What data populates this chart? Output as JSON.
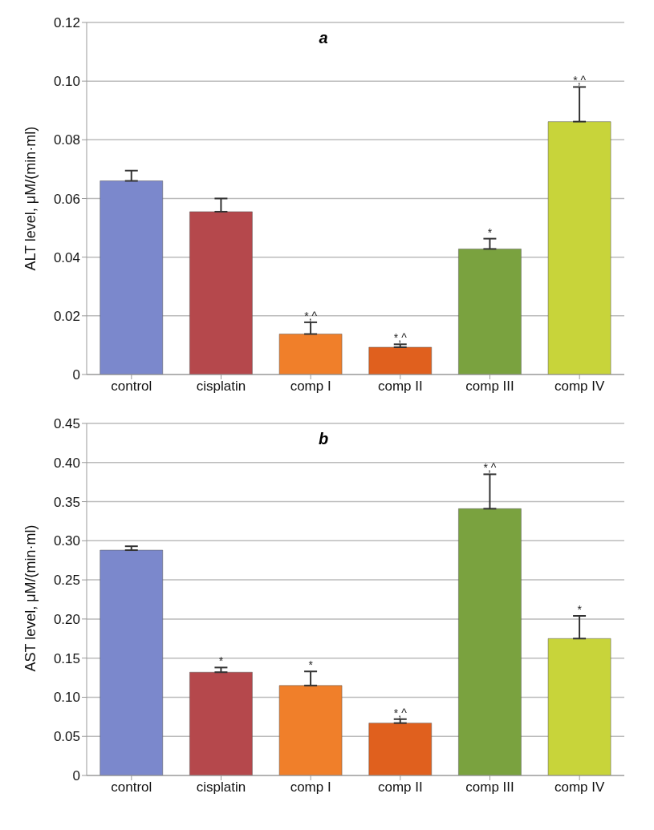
{
  "chart_data": [
    {
      "type": "bar",
      "title": "a",
      "ylabel": "ALT level, μM/(min·ml)",
      "categories": [
        "control",
        "cisplatin",
        "comp I",
        "comp II",
        "comp III",
        "comp IV"
      ],
      "values": [
        0.066,
        0.0555,
        0.0138,
        0.0093,
        0.0428,
        0.0862
      ],
      "colors": [
        "#7b88cc",
        "#b5484c",
        "#f07f2a",
        "#e0601e",
        "#7aa23f",
        "#c8d43a"
      ],
      "errors": [
        [
          0.066,
          0.0695
        ],
        [
          0.0555,
          0.06
        ],
        [
          0.0138,
          0.0178
        ],
        [
          0.0093,
          0.0103
        ],
        [
          0.0428,
          0.0463
        ],
        [
          0.0862,
          0.098
        ]
      ],
      "ylim": [
        0,
        0.12
      ],
      "yticks": [
        0,
        0.02,
        0.04,
        0.06,
        0.08,
        {
          "value": 0.1,
          "label": "0.10"
        },
        0.12
      ],
      "grid": "y",
      "annotations": [
        {
          "text": "*,^",
          "x": "comp I",
          "y": 0.0138
        },
        {
          "text": "*,^",
          "x": "comp II",
          "y": 0.0093
        },
        {
          "text": "*",
          "x": "comp III",
          "y": 0.0428
        },
        {
          "text": "*,^",
          "x": "comp IV",
          "y": 0.098
        }
      ]
    },
    {
      "type": "bar",
      "title": "b",
      "ylabel": "AST level, μM/(min·ml)",
      "categories": [
        "control",
        "cisplatin",
        "comp I",
        "comp II",
        "comp III",
        "comp IV"
      ],
      "values": [
        0.288,
        0.132,
        0.115,
        0.067,
        0.341,
        0.175
      ],
      "colors": [
        "#7b88cc",
        "#b5484c",
        "#f07f2a",
        "#e0601e",
        "#7aa23f",
        "#c8d43a"
      ],
      "errors": [
        [
          0.288,
          0.293
        ],
        [
          0.132,
          0.138
        ],
        [
          0.115,
          0.133
        ],
        [
          0.067,
          0.072
        ],
        [
          0.341,
          0.385
        ],
        [
          0.175,
          0.204
        ]
      ],
      "ylim": [
        0,
        0.45
      ],
      "yticks": [
        0,
        0.05,
        {
          "value": 0.1,
          "label": "0.10"
        },
        0.15,
        {
          "value": 0.2,
          "label": "0.20"
        },
        0.25,
        {
          "value": 0.3,
          "label": "0.30"
        },
        0.35,
        {
          "value": 0.4,
          "label": "0.40"
        },
        0.45
      ],
      "grid": "y",
      "annotations": [
        {
          "text": "*",
          "x": "cisplatin",
          "y": 0.132
        },
        {
          "text": "*",
          "x": "comp I",
          "y": 0.115
        },
        {
          "text": "*,^",
          "x": "comp II",
          "y": 0.067
        },
        {
          "text": "*,^",
          "x": "comp III",
          "y": 0.385
        },
        {
          "text": "*",
          "x": "comp IV",
          "y": 0.175
        }
      ]
    }
  ]
}
